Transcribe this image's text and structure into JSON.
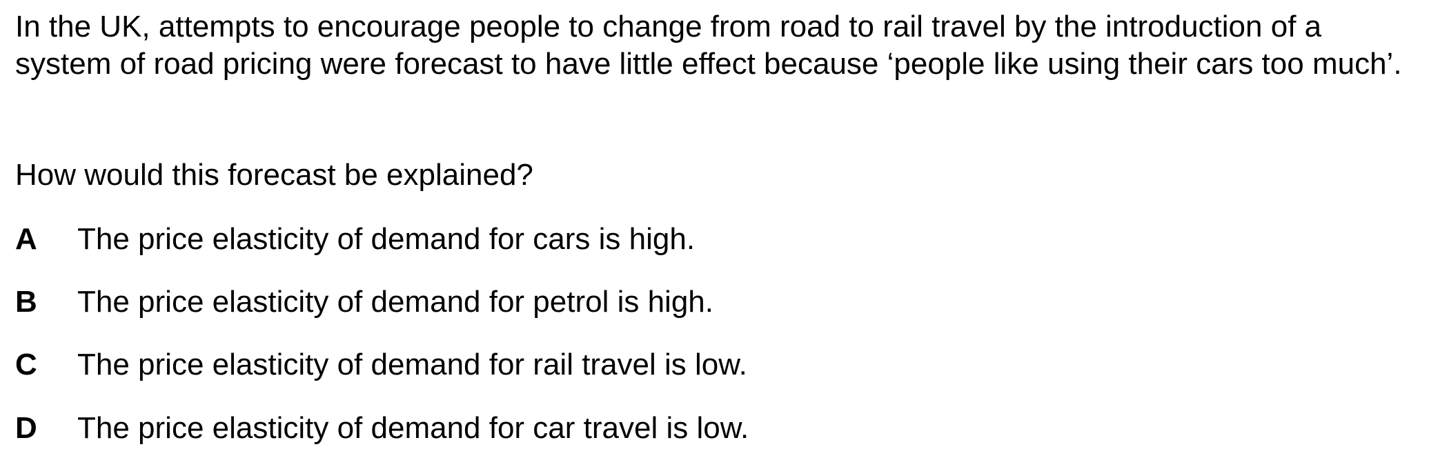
{
  "question": {
    "stem": "In the UK, attempts to encourage people to change from road to rail travel by the introduction of a system of road pricing were forecast to have little effect because ‘people like using their cars too much’.",
    "prompt": "How would this forecast be explained?",
    "options": [
      {
        "letter": "A",
        "text": "The price elasticity of demand for cars is high."
      },
      {
        "letter": "B",
        "text": "The price elasticity of demand for petrol is high."
      },
      {
        "letter": "C",
        "text": "The price elasticity of demand for rail travel is low."
      },
      {
        "letter": "D",
        "text": "The price elasticity of demand for car travel is low."
      }
    ]
  }
}
